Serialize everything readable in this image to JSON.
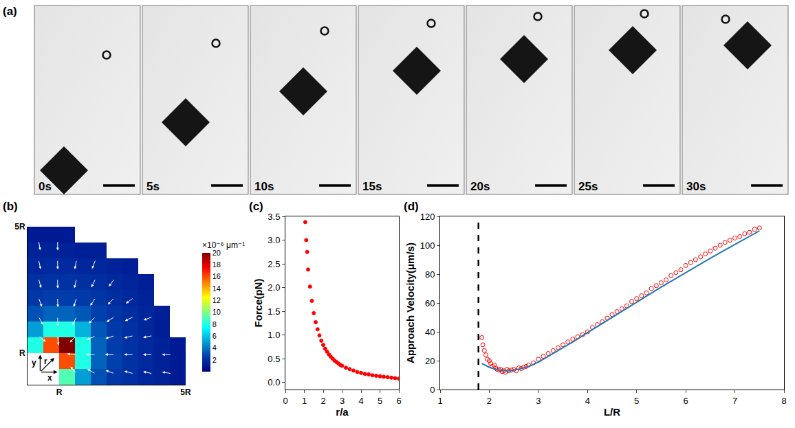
{
  "panel_a": {
    "label": "(a)",
    "frames": [
      "0s",
      "5s",
      "10s",
      "15s",
      "20s",
      "25s",
      "30s"
    ]
  },
  "chart_data": [
    {
      "panel": "(b)",
      "type": "heatmap",
      "x_bins": [
        0,
        0.5,
        1,
        1.5,
        2,
        2.5,
        3,
        3.5,
        4,
        4.5,
        5
      ],
      "y_bins": [
        0,
        0.5,
        1,
        1.5,
        2,
        2.5,
        3,
        3.5,
        4,
        4.5,
        5
      ],
      "z": [
        [
          null,
          null,
          9,
          5,
          3,
          2.3,
          2,
          1.6,
          1.4,
          1.1
        ],
        [
          null,
          null,
          16,
          8,
          3.5,
          2.6,
          2.1,
          1.7,
          1.4,
          1.1
        ],
        [
          8,
          16,
          20,
          8,
          3.5,
          2.5,
          2.1,
          1.7,
          1.4,
          1.1
        ],
        [
          5,
          8,
          8,
          5.5,
          3.2,
          2.4,
          2,
          1.6,
          1.3,
          null
        ],
        [
          3,
          3.5,
          3.5,
          3.2,
          2.6,
          2.2,
          1.9,
          1.6,
          1.3,
          null
        ],
        [
          2.3,
          2.5,
          2.5,
          2.4,
          2.2,
          1.9,
          1.7,
          1.4,
          null,
          null
        ],
        [
          2,
          2.1,
          2.1,
          2,
          1.9,
          1.7,
          1.5,
          1.3,
          null,
          null
        ],
        [
          1.6,
          1.7,
          1.7,
          1.6,
          1.6,
          1.4,
          1.3,
          null,
          null,
          null
        ],
        [
          1.4,
          1.4,
          1.4,
          1.3,
          1.3,
          null,
          null,
          null,
          null,
          null
        ],
        [
          1.1,
          1.1,
          1.1,
          null,
          null,
          null,
          null,
          null,
          null,
          null
        ]
      ],
      "colorbar_range": [
        0,
        20
      ],
      "colorbar_ticks": [
        2,
        4,
        6,
        8,
        10,
        12,
        14,
        16,
        18,
        20
      ],
      "colorbar_title": "×10⁻⁶ μm⁻¹",
      "xlim": [
        0,
        5
      ],
      "ylim": [
        0,
        5
      ],
      "xticks": [
        {
          "value": 1,
          "label": "R"
        },
        {
          "value": 5,
          "label": "5R"
        }
      ],
      "yticks": [
        {
          "value": 1,
          "label": "R"
        },
        {
          "value": 5,
          "label": "5R"
        }
      ],
      "inset_labels": [
        "r",
        "x",
        "y"
      ],
      "grid": false
    },
    {
      "panel": "(c)",
      "type": "scatter",
      "x_label": "r/a",
      "y_label": "Force(pN)",
      "x": [
        1.05,
        1.1,
        1.15,
        1.2,
        1.3,
        1.4,
        1.5,
        1.6,
        1.7,
        1.8,
        1.9,
        2.0,
        2.1,
        2.2,
        2.3,
        2.4,
        2.5,
        2.6,
        2.7,
        2.8,
        2.9,
        3.0,
        3.2,
        3.4,
        3.6,
        3.8,
        4.0,
        4.2,
        4.4,
        4.6,
        4.8,
        5.0,
        5.2,
        5.4,
        5.6,
        5.8,
        6.0
      ],
      "values": [
        3.38,
        3.0,
        2.75,
        2.38,
        2.02,
        1.72,
        1.46,
        1.27,
        1.12,
        0.99,
        0.88,
        0.79,
        0.71,
        0.65,
        0.59,
        0.54,
        0.5,
        0.46,
        0.43,
        0.4,
        0.37,
        0.35,
        0.31,
        0.28,
        0.25,
        0.22,
        0.2,
        0.18,
        0.17,
        0.15,
        0.14,
        0.13,
        0.12,
        0.11,
        0.1,
        0.09,
        0.08
      ],
      "color": "#ff0000",
      "marker": "circle",
      "xlim": [
        0,
        6
      ],
      "xticks": [
        0,
        1,
        2,
        3,
        4,
        5,
        6
      ],
      "ylim": [
        -0.15,
        3.5
      ],
      "yticks": [
        {
          "value": 0,
          "label": "0.0"
        },
        0.5,
        {
          "value": 1,
          "label": "1.0"
        },
        1.5,
        {
          "value": 2,
          "label": "2.0"
        },
        2.5,
        {
          "value": 3,
          "label": "3.0"
        },
        3.5
      ],
      "grid": false
    },
    {
      "panel": "(d)",
      "type": "scatter",
      "x_label": "L/R",
      "y_label": "Approach Velocity(μm/s)",
      "series": [
        {
          "type": "scatter",
          "color": "#ff0000",
          "marker": "circle-open",
          "x": [
            1.85,
            1.87,
            1.9,
            1.93,
            1.96,
            2.0,
            2.03,
            2.06,
            2.1,
            2.13,
            2.16,
            2.2,
            2.23,
            2.26,
            2.3,
            2.33,
            2.36,
            2.4,
            2.45,
            2.5,
            2.55,
            2.6,
            2.65,
            2.7,
            2.75,
            2.8,
            2.9,
            3.0,
            3.1,
            3.2,
            3.3,
            3.4,
            3.5,
            3.6,
            3.7,
            3.8,
            3.9,
            4.0,
            4.1,
            4.2,
            4.3,
            4.4,
            4.5,
            4.6,
            4.7,
            4.8,
            4.9,
            5.0,
            5.1,
            5.2,
            5.3,
            5.4,
            5.5,
            5.6,
            5.7,
            5.8,
            5.9,
            6.0,
            6.1,
            6.2,
            6.3,
            6.4,
            6.5,
            6.6,
            6.7,
            6.8,
            6.9,
            7.0,
            7.1,
            7.2,
            7.3,
            7.4,
            7.5
          ],
          "values": [
            36,
            31,
            27,
            24,
            21,
            20,
            18,
            16,
            17,
            15,
            14,
            13.5,
            14,
            12.5,
            13,
            12,
            14,
            13,
            13.5,
            14,
            13,
            15,
            14.5,
            15.5,
            16,
            17,
            18.5,
            21,
            23,
            25,
            27,
            29,
            31,
            33,
            35,
            36.5,
            38,
            40,
            43,
            45,
            47,
            49.5,
            52,
            54,
            56,
            58,
            61,
            63,
            65,
            67,
            70,
            72,
            74,
            76,
            79,
            81,
            83,
            86,
            88,
            90,
            92,
            94,
            96,
            98,
            100,
            102,
            103.5,
            105,
            106,
            108,
            109,
            111,
            112
          ]
        },
        {
          "type": "line",
          "color": "#1f77b4",
          "line_style": "solid",
          "x": [
            1.85,
            2.0,
            2.2,
            2.4,
            2.6,
            2.8,
            3.0,
            3.25,
            3.5,
            3.75,
            4.0,
            4.5,
            5.0,
            5.5,
            6.0,
            6.5,
            7.0,
            7.5
          ],
          "values": [
            18,
            15.5,
            13.5,
            13,
            14,
            16,
            19,
            24,
            29,
            34,
            39.5,
            50,
            60.5,
            71,
            81,
            91,
            100.5,
            110
          ]
        }
      ],
      "vertical_line": {
        "x": 1.78,
        "line_style": "dash",
        "color": "#000000"
      },
      "xlim": [
        1,
        8
      ],
      "xticks": [
        1,
        2,
        3,
        4,
        5,
        6,
        7,
        8
      ],
      "ylim": [
        0,
        120
      ],
      "yticks": [
        0,
        20,
        40,
        60,
        80,
        100,
        120
      ],
      "grid": false
    }
  ]
}
